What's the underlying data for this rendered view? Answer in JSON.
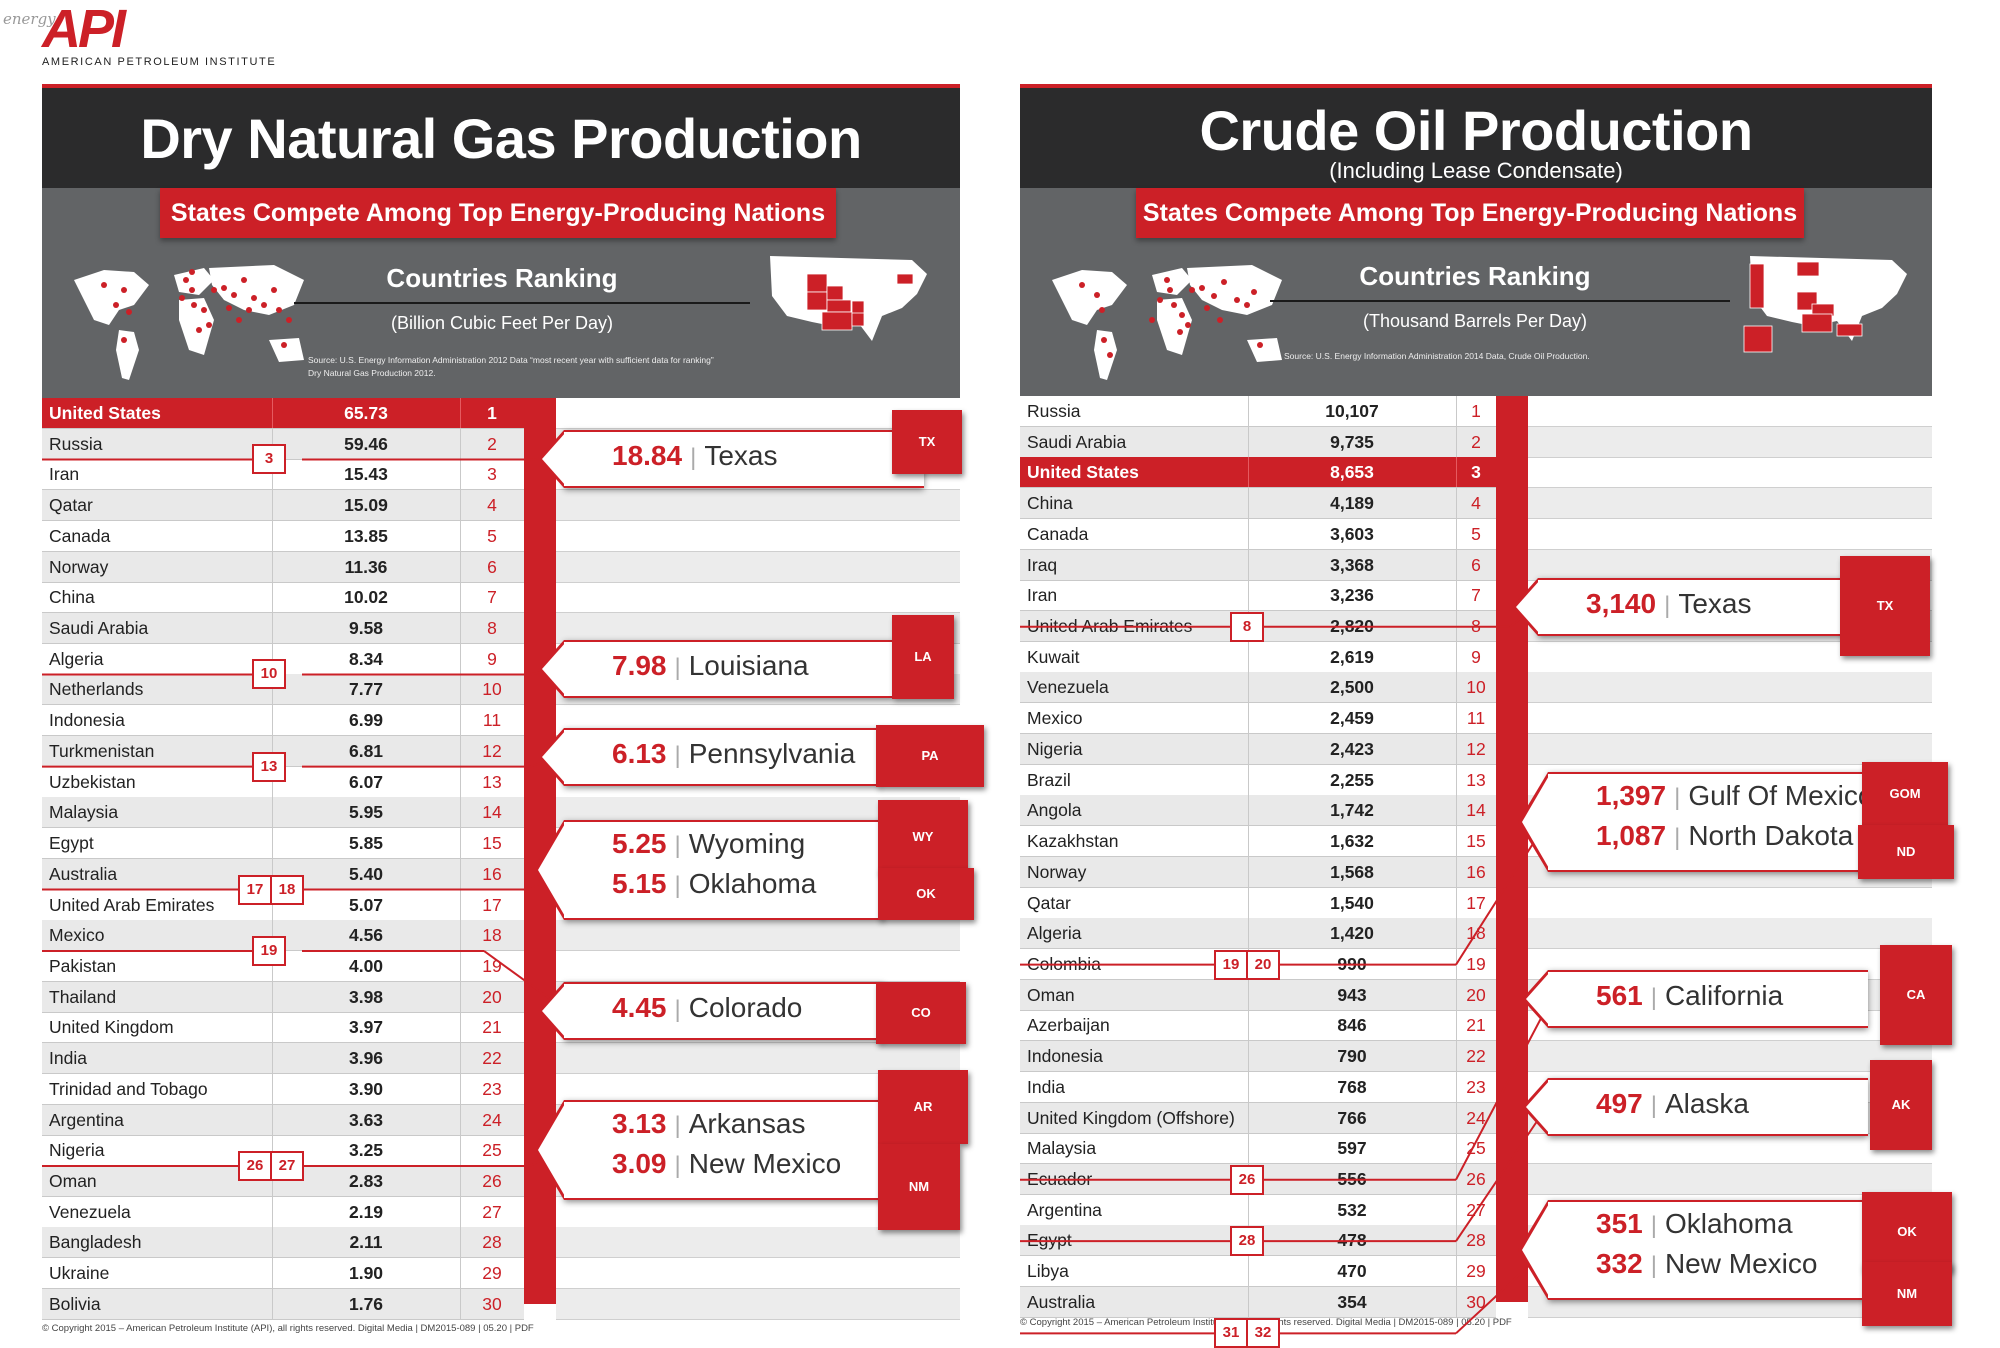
{
  "brand": {
    "energy": "energy",
    "logo": "API",
    "org": "AMERICAN PETROLEUM INSTITUTE",
    "accent": "#cc2027"
  },
  "left": {
    "title": "Dry Natural Gas Production",
    "banner": "States Compete Among Top Energy-Producing Nations",
    "ranking_title": "Countries Ranking",
    "unit": "(Billion Cubic Feet Per Day)",
    "source_1": "Source: U.S. Energy Information Administration 2012 Data “most recent year with sufficient data for ranking”",
    "source_2": "Dry Natural Gas Production 2012.",
    "footer": "© Copyright 2015 – American Petroleum Institute (API), all rights reserved. Digital Media | DM2015-089 | 05.20 | PDF",
    "badges": [
      "3",
      "10",
      "13",
      "17",
      "18",
      "19",
      "26",
      "27"
    ],
    "callouts": [
      {
        "lines": [
          {
            "num": "18.84",
            "state": "Texas"
          }
        ],
        "box": "TX"
      },
      {
        "lines": [
          {
            "num": "7.98",
            "state": "Louisiana"
          }
        ],
        "box": "LA"
      },
      {
        "lines": [
          {
            "num": "6.13",
            "state": "Pennsylvania"
          }
        ],
        "box": "PA"
      },
      {
        "lines": [
          {
            "num": "5.25",
            "state": "Wyoming"
          },
          {
            "num": "5.15",
            "state": "Oklahoma"
          }
        ],
        "box": "WY",
        "box2": "OK"
      },
      {
        "lines": [
          {
            "num": "4.45",
            "state": "Colorado"
          }
        ],
        "box": "CO"
      },
      {
        "lines": [
          {
            "num": "3.13",
            "state": "Arkansas"
          },
          {
            "num": "3.09",
            "state": "New Mexico"
          }
        ],
        "box": "AR",
        "box2": "NM"
      }
    ]
  },
  "right": {
    "title": "Crude Oil Production",
    "subtitle": "(Including Lease Condensate)",
    "banner": "States Compete Among Top Energy-Producing Nations",
    "ranking_title": "Countries Ranking",
    "unit": "(Thousand Barrels Per Day)",
    "source_1": "Source: U.S. Energy Information Administration 2014 Data, Crude Oil Production.",
    "footer": "© Copyright 2015 – American Petroleum Institute (API), all rights reserved. Digital Media | DM2015-089 | 05.20 | PDF",
    "badges": [
      "8",
      "19",
      "20",
      "26",
      "28",
      "31",
      "32"
    ],
    "callouts": [
      {
        "lines": [
          {
            "num": "3,140",
            "state": "Texas"
          }
        ],
        "box": "TX"
      },
      {
        "lines": [
          {
            "num": "1,397",
            "state": "Gulf Of Mexico"
          },
          {
            "num": "1,087",
            "state": "North Dakota"
          }
        ],
        "box": "GOM",
        "box2": "ND"
      },
      {
        "lines": [
          {
            "num": "561",
            "state": "California"
          }
        ],
        "box": "CA"
      },
      {
        "lines": [
          {
            "num": "497",
            "state": "Alaska"
          }
        ],
        "box": "AK"
      },
      {
        "lines": [
          {
            "num": "351",
            "state": "Oklahoma"
          },
          {
            "num": "332",
            "state": "New Mexico"
          }
        ],
        "box": "OK",
        "box2": "NM"
      }
    ]
  },
  "chart_data": [
    {
      "type": "table",
      "title": "Dry Natural Gas Production",
      "unit": "(Billion Cubic Feet Per Day)",
      "highlight": "United States",
      "rows": [
        [
          "United States",
          "65.73",
          "1"
        ],
        [
          "Russia",
          "59.46",
          "2"
        ],
        [
          "Iran",
          "15.43",
          "3"
        ],
        [
          "Qatar",
          "15.09",
          "4"
        ],
        [
          "Canada",
          "13.85",
          "5"
        ],
        [
          "Norway",
          "11.36",
          "6"
        ],
        [
          "China",
          "10.02",
          "7"
        ],
        [
          "Saudi Arabia",
          "9.58",
          "8"
        ],
        [
          "Algeria",
          "8.34",
          "9"
        ],
        [
          "Netherlands",
          "7.77",
          "10"
        ],
        [
          "Indonesia",
          "6.99",
          "11"
        ],
        [
          "Turkmenistan",
          "6.81",
          "12"
        ],
        [
          "Uzbekistan",
          "6.07",
          "13"
        ],
        [
          "Malaysia",
          "5.95",
          "14"
        ],
        [
          "Egypt",
          "5.85",
          "15"
        ],
        [
          "Australia",
          "5.40",
          "16"
        ],
        [
          "United Arab Emirates",
          "5.07",
          "17"
        ],
        [
          "Mexico",
          "4.56",
          "18"
        ],
        [
          "Pakistan",
          "4.00",
          "19"
        ],
        [
          "Thailand",
          "3.98",
          "20"
        ],
        [
          "United Kingdom",
          "3.97",
          "21"
        ],
        [
          "India",
          "3.96",
          "22"
        ],
        [
          "Trinidad and Tobago",
          "3.90",
          "23"
        ],
        [
          "Argentina",
          "3.63",
          "24"
        ],
        [
          "Nigeria",
          "3.25",
          "25"
        ],
        [
          "Oman",
          "2.83",
          "26"
        ],
        [
          "Venezuela",
          "2.19",
          "27"
        ],
        [
          "Bangladesh",
          "2.11",
          "28"
        ],
        [
          "Ukraine",
          "1.90",
          "29"
        ],
        [
          "Bolivia",
          "1.76",
          "30"
        ]
      ],
      "states": [
        {
          "state": "Texas",
          "value": 18.84,
          "rank": 3
        },
        {
          "state": "Louisiana",
          "value": 7.98,
          "rank": 10
        },
        {
          "state": "Pennsylvania",
          "value": 6.13,
          "rank": 13
        },
        {
          "state": "Wyoming",
          "value": 5.25,
          "rank": 17
        },
        {
          "state": "Oklahoma",
          "value": 5.15,
          "rank": 18
        },
        {
          "state": "Colorado",
          "value": 4.45,
          "rank": 19
        },
        {
          "state": "Arkansas",
          "value": 3.13,
          "rank": 26
        },
        {
          "state": "New Mexico",
          "value": 3.09,
          "rank": 27
        }
      ]
    },
    {
      "type": "table",
      "title": "Crude Oil Production",
      "unit": "(Thousand Barrels Per Day)",
      "highlight": "United States",
      "rows": [
        [
          "Russia",
          "10,107",
          "1"
        ],
        [
          "Saudi Arabia",
          "9,735",
          "2"
        ],
        [
          "United States",
          "8,653",
          "3"
        ],
        [
          "China",
          "4,189",
          "4"
        ],
        [
          "Canada",
          "3,603",
          "5"
        ],
        [
          "Iraq",
          "3,368",
          "6"
        ],
        [
          "Iran",
          "3,236",
          "7"
        ],
        [
          "United Arab Emirates",
          "2,820",
          "8"
        ],
        [
          "Kuwait",
          "2,619",
          "9"
        ],
        [
          "Venezuela",
          "2,500",
          "10"
        ],
        [
          "Mexico",
          "2,459",
          "11"
        ],
        [
          "Nigeria",
          "2,423",
          "12"
        ],
        [
          "Brazil",
          "2,255",
          "13"
        ],
        [
          "Angola",
          "1,742",
          "14"
        ],
        [
          "Kazakhstan",
          "1,632",
          "15"
        ],
        [
          "Norway",
          "1,568",
          "16"
        ],
        [
          "Qatar",
          "1,540",
          "17"
        ],
        [
          "Algeria",
          "1,420",
          "18"
        ],
        [
          "Colombia",
          "990",
          "19"
        ],
        [
          "Oman",
          "943",
          "20"
        ],
        [
          "Azerbaijan",
          "846",
          "21"
        ],
        [
          "Indonesia",
          "790",
          "22"
        ],
        [
          "India",
          "768",
          "23"
        ],
        [
          "United Kingdom (Offshore)",
          "766",
          "24"
        ],
        [
          "Malaysia",
          "597",
          "25"
        ],
        [
          "Ecuador",
          "556",
          "26"
        ],
        [
          "Argentina",
          "532",
          "27"
        ],
        [
          "Egypt",
          "478",
          "28"
        ],
        [
          "Libya",
          "470",
          "29"
        ],
        [
          "Australia",
          "354",
          "30"
        ]
      ],
      "states": [
        {
          "state": "Texas",
          "value": 3140,
          "rank": 8
        },
        {
          "state": "Gulf Of Mexico",
          "value": 1397,
          "rank": 19
        },
        {
          "state": "North Dakota",
          "value": 1087,
          "rank": 20
        },
        {
          "state": "California",
          "value": 561,
          "rank": 26
        },
        {
          "state": "Alaska",
          "value": 497,
          "rank": 28
        },
        {
          "state": "Oklahoma",
          "value": 351,
          "rank": 31
        },
        {
          "state": "New Mexico",
          "value": 332,
          "rank": 32
        }
      ]
    }
  ]
}
